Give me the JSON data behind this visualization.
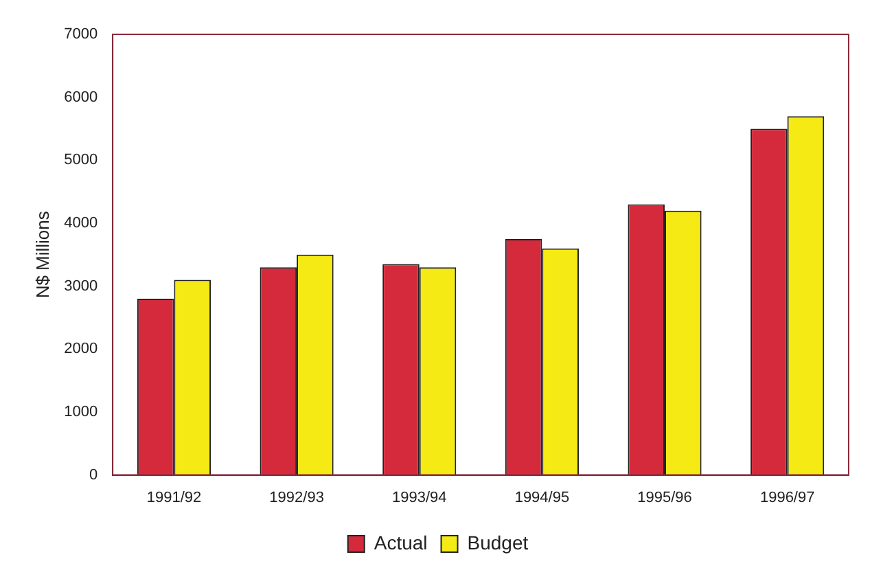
{
  "chart_data": {
    "type": "bar",
    "ylabel": "N$ Millions",
    "categories": [
      "1991/92",
      "1992/93",
      "1993/94",
      "1994/95",
      "1995/96",
      "1996/97"
    ],
    "series": [
      {
        "name": "Actual",
        "color": "#d42a3c",
        "values": [
          2800,
          3300,
          3350,
          3750,
          4300,
          5500
        ]
      },
      {
        "name": "Budget",
        "color": "#f5ea14",
        "values": [
          3100,
          3500,
          3300,
          3600,
          4200,
          5700
        ]
      }
    ],
    "ylim": [
      0,
      7000
    ],
    "yticks": [
      0,
      1000,
      2000,
      3000,
      4000,
      5000,
      6000,
      7000
    ],
    "grid": false,
    "legend": "bottom"
  }
}
